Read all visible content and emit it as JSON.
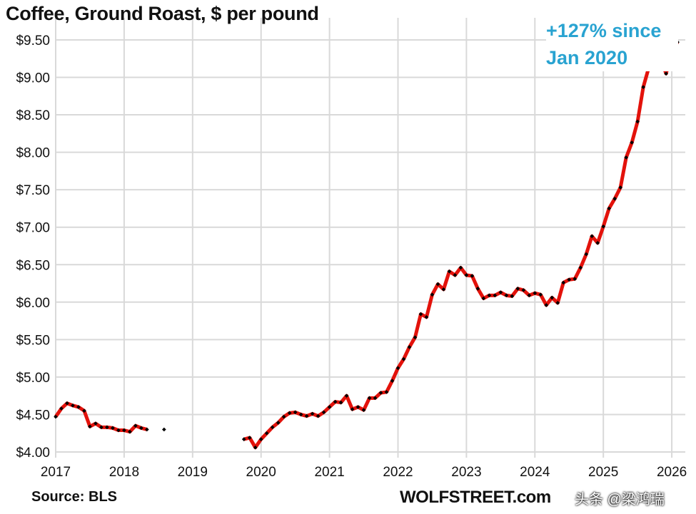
{
  "chart_data": {
    "type": "line",
    "title": "Coffee, Ground Roast, $ per pound",
    "annotation": [
      "+127% since",
      "Jan 2020"
    ],
    "source": "Source: BLS",
    "brand": "WOLFSTREET.com",
    "watermark": "头条 @梁鸿瑞",
    "xlabel": "",
    "ylabel": "",
    "xlim": [
      2017,
      2026.15
    ],
    "ylim": [
      4.0,
      9.5
    ],
    "grid": true,
    "line_color": "#e3120b",
    "marker_color": "#000000",
    "annotation_color": "#29a3d1",
    "x_ticks": [
      "2017",
      "2018",
      "2019",
      "2020",
      "2021",
      "2022",
      "2023",
      "2024",
      "2025",
      "2026"
    ],
    "y_ticks": [
      "$4.00",
      "$4.50",
      "$5.00",
      "$5.50",
      "$6.00",
      "$6.50",
      "$7.00",
      "$7.50",
      "$8.00",
      "$8.50",
      "$9.00",
      "$9.50"
    ],
    "start": "2017-01",
    "frequency": "monthly",
    "values": [
      4.47,
      4.58,
      4.65,
      4.62,
      4.6,
      4.55,
      4.34,
      4.38,
      4.33,
      4.33,
      4.32,
      4.29,
      4.29,
      4.27,
      4.35,
      4.32,
      4.3,
      null,
      null,
      4.3,
      null,
      null,
      null,
      null,
      null,
      null,
      null,
      null,
      null,
      null,
      null,
      null,
      null,
      4.17,
      4.19,
      4.06,
      4.17,
      4.25,
      4.33,
      4.39,
      4.47,
      4.52,
      4.53,
      4.5,
      4.48,
      4.51,
      4.48,
      4.53,
      4.6,
      4.67,
      4.66,
      4.75,
      4.57,
      4.6,
      4.56,
      4.72,
      4.72,
      4.79,
      4.8,
      4.95,
      5.12,
      5.24,
      5.4,
      5.53,
      5.84,
      5.8,
      6.1,
      6.24,
      6.17,
      6.41,
      6.36,
      6.46,
      6.36,
      6.35,
      6.18,
      6.05,
      6.09,
      6.09,
      6.13,
      6.09,
      6.08,
      6.18,
      6.16,
      6.09,
      6.12,
      6.1,
      5.96,
      6.06,
      5.99,
      6.26,
      6.3,
      6.31,
      6.46,
      6.64,
      6.88,
      6.79,
      7.01,
      7.25,
      7.38,
      7.53,
      7.93,
      8.13,
      8.41,
      8.87,
      9.14,
      9.2,
      9.26,
      9.05,
      9.37,
      9.47
    ]
  }
}
